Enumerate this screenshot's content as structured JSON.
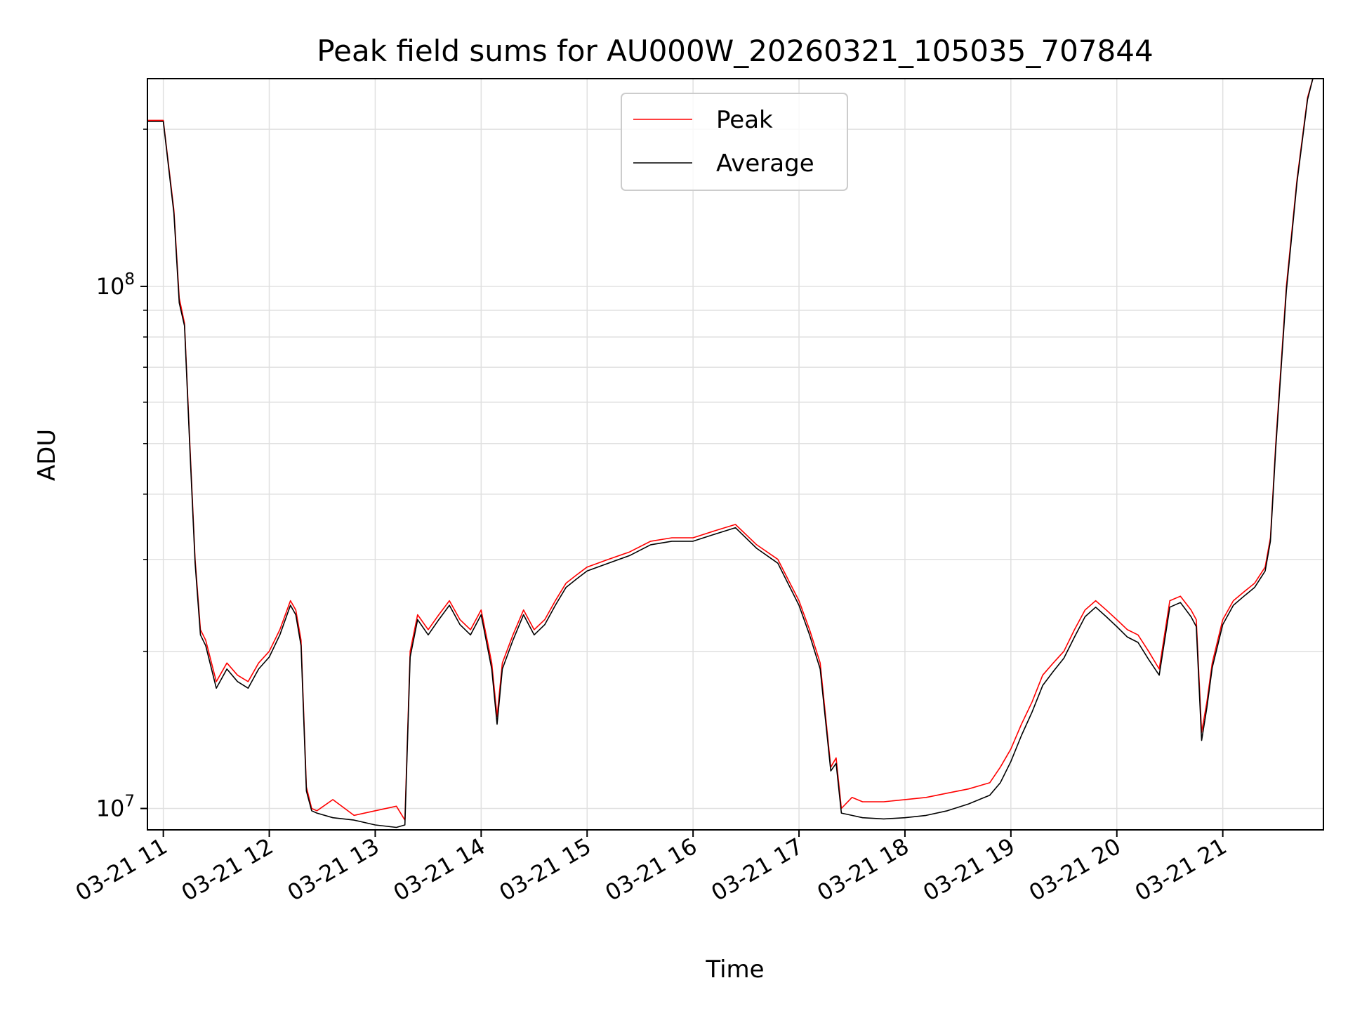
{
  "chart_data": {
    "type": "line",
    "title": "Peak field sums for AU000W_20260321_105035_707844",
    "xlabel": "Time",
    "ylabel": "ADU",
    "yscale": "log",
    "ylim": [
      9100000,
      250000000
    ],
    "xlim": [
      10.85,
      21.95
    ],
    "grid": true,
    "legend_position": "top-center",
    "x_ticks": [
      {
        "value": 11,
        "label": "03-21 11"
      },
      {
        "value": 12,
        "label": "03-21 12"
      },
      {
        "value": 13,
        "label": "03-21 13"
      },
      {
        "value": 14,
        "label": "03-21 14"
      },
      {
        "value": 15,
        "label": "03-21 15"
      },
      {
        "value": 16,
        "label": "03-21 16"
      },
      {
        "value": 17,
        "label": "03-21 17"
      },
      {
        "value": 18,
        "label": "03-21 18"
      },
      {
        "value": 19,
        "label": "03-21 19"
      },
      {
        "value": 20,
        "label": "03-21 20"
      },
      {
        "value": 21,
        "label": "03-21 21"
      }
    ],
    "y_ticks": [
      {
        "value": 10000000,
        "base": "10",
        "exp": "7"
      },
      {
        "value": 100000000,
        "base": "10",
        "exp": "8"
      }
    ],
    "series": [
      {
        "name": "Peak",
        "color": "#ff0000",
        "x": [
          10.85,
          11.0,
          11.1,
          11.15,
          11.2,
          11.25,
          11.3,
          11.35,
          11.4,
          11.5,
          11.6,
          11.7,
          11.8,
          11.9,
          12.0,
          12.1,
          12.2,
          12.25,
          12.3,
          12.35,
          12.4,
          12.45,
          12.6,
          12.8,
          13.0,
          13.2,
          13.28,
          13.33,
          13.4,
          13.5,
          13.6,
          13.7,
          13.8,
          13.9,
          14.0,
          14.1,
          14.15,
          14.2,
          14.3,
          14.4,
          14.5,
          14.6,
          14.7,
          14.8,
          14.9,
          15.0,
          15.2,
          15.4,
          15.6,
          15.8,
          16.0,
          16.2,
          16.4,
          16.6,
          16.8,
          17.0,
          17.1,
          17.2,
          17.3,
          17.35,
          17.4,
          17.5,
          17.6,
          17.8,
          18.0,
          18.2,
          18.4,
          18.6,
          18.8,
          18.9,
          19.0,
          19.1,
          19.2,
          19.3,
          19.4,
          19.5,
          19.6,
          19.7,
          19.8,
          19.9,
          20.0,
          20.1,
          20.2,
          20.3,
          20.4,
          20.5,
          20.6,
          20.7,
          20.75,
          20.8,
          20.85,
          20.9,
          21.0,
          21.1,
          21.2,
          21.3,
          21.4,
          21.45,
          21.5,
          21.6,
          21.7,
          21.8,
          21.85,
          21.9
        ],
        "values": [
          208000000,
          208000000,
          140000000,
          95000000,
          85000000,
          50000000,
          30000000,
          22000000,
          21000000,
          17500000,
          19000000,
          18000000,
          17500000,
          19000000,
          20000000,
          22000000,
          25000000,
          24000000,
          21000000,
          11000000,
          10000000,
          9900000,
          10400000,
          9700000,
          9900000,
          10100000,
          9500000,
          20000000,
          23500000,
          22000000,
          23500000,
          25000000,
          23000000,
          22000000,
          24000000,
          19000000,
          15000000,
          19000000,
          21500000,
          24000000,
          22000000,
          23000000,
          25000000,
          27000000,
          28000000,
          29000000,
          30000000,
          31000000,
          32500000,
          33000000,
          33000000,
          34000000,
          35000000,
          32000000,
          30000000,
          25000000,
          22000000,
          19000000,
          12000000,
          12500000,
          10000000,
          10500000,
          10300000,
          10300000,
          10400000,
          10500000,
          10700000,
          10900000,
          11200000,
          12000000,
          13000000,
          14500000,
          16000000,
          18000000,
          19000000,
          20000000,
          22000000,
          24000000,
          25000000,
          24000000,
          23000000,
          22000000,
          21500000,
          20000000,
          18500000,
          25000000,
          25500000,
          24000000,
          23000000,
          14000000,
          16000000,
          19000000,
          23000000,
          25000000,
          26000000,
          27000000,
          29000000,
          33000000,
          50000000,
          100000000,
          160000000,
          230000000,
          250000000,
          250000000
        ]
      },
      {
        "name": "Average",
        "color": "#000000",
        "x": [
          10.85,
          11.0,
          11.1,
          11.15,
          11.2,
          11.25,
          11.3,
          11.35,
          11.4,
          11.5,
          11.6,
          11.7,
          11.8,
          11.9,
          12.0,
          12.1,
          12.2,
          12.25,
          12.3,
          12.35,
          12.4,
          12.45,
          12.6,
          12.8,
          13.0,
          13.2,
          13.28,
          13.33,
          13.4,
          13.5,
          13.6,
          13.7,
          13.8,
          13.9,
          14.0,
          14.1,
          14.15,
          14.2,
          14.3,
          14.4,
          14.5,
          14.6,
          14.7,
          14.8,
          14.9,
          15.0,
          15.2,
          15.4,
          15.6,
          15.8,
          16.0,
          16.2,
          16.4,
          16.6,
          16.8,
          17.0,
          17.1,
          17.2,
          17.3,
          17.35,
          17.4,
          17.5,
          17.6,
          17.8,
          18.0,
          18.2,
          18.4,
          18.6,
          18.8,
          18.9,
          19.0,
          19.1,
          19.2,
          19.3,
          19.4,
          19.5,
          19.6,
          19.7,
          19.8,
          19.9,
          20.0,
          20.1,
          20.2,
          20.3,
          20.4,
          20.5,
          20.6,
          20.7,
          20.75,
          20.8,
          20.85,
          20.9,
          21.0,
          21.1,
          21.2,
          21.3,
          21.4,
          21.45,
          21.5,
          21.6,
          21.7,
          21.8,
          21.85,
          21.9
        ],
        "values": [
          207000000,
          207000000,
          138000000,
          93000000,
          84000000,
          49000000,
          29500000,
          21500000,
          20500000,
          17000000,
          18500000,
          17500000,
          17000000,
          18500000,
          19500000,
          21500000,
          24500000,
          23500000,
          20500000,
          10800000,
          9900000,
          9800000,
          9600000,
          9500000,
          9300000,
          9200000,
          9300000,
          19500000,
          23000000,
          21500000,
          23000000,
          24500000,
          22500000,
          21500000,
          23500000,
          18500000,
          14500000,
          18500000,
          21000000,
          23500000,
          21500000,
          22500000,
          24500000,
          26500000,
          27500000,
          28500000,
          29500000,
          30500000,
          32000000,
          32500000,
          32500000,
          33500000,
          34500000,
          31500000,
          29500000,
          24500000,
          21500000,
          18500000,
          11800000,
          12200000,
          9800000,
          9700000,
          9600000,
          9550000,
          9600000,
          9700000,
          9900000,
          10200000,
          10600000,
          11200000,
          12300000,
          13800000,
          15300000,
          17200000,
          18300000,
          19400000,
          21300000,
          23300000,
          24300000,
          23300000,
          22300000,
          21300000,
          20800000,
          19300000,
          18000000,
          24300000,
          24800000,
          23300000,
          22300000,
          13500000,
          15600000,
          18600000,
          22500000,
          24500000,
          25500000,
          26500000,
          28500000,
          32500000,
          49000000,
          98000000,
          158000000,
          228000000,
          250000000,
          250000000
        ]
      }
    ]
  }
}
